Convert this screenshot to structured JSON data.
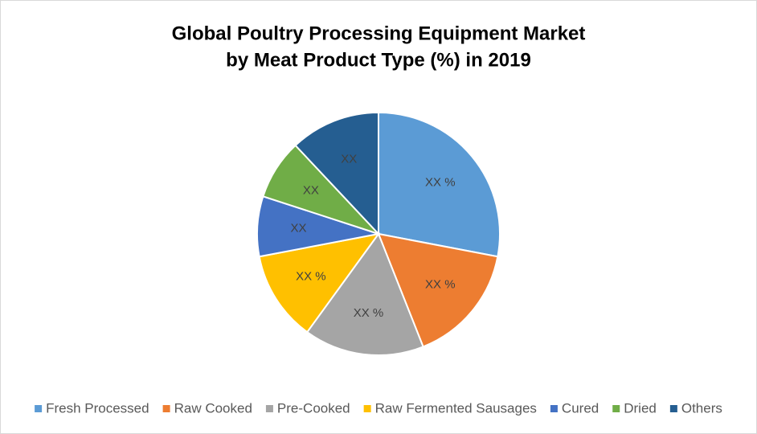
{
  "chart_data": {
    "type": "pie",
    "title": [
      "Global Poultry Processing Equipment Market",
      "by Meat Product Type (%) in 2019"
    ],
    "categories": [
      "Fresh Processed",
      "Raw Cooked",
      "Pre-Cooked",
      "Raw Fermented Sausages",
      "Cured",
      "Dried",
      "Others"
    ],
    "values": [
      28,
      16,
      16,
      12,
      8,
      8,
      12
    ],
    "value_labels": [
      "XX %",
      "XX %",
      "XX %",
      "XX %",
      "XX",
      "XX",
      "XX"
    ],
    "colors": [
      "#5b9bd5",
      "#ed7d31",
      "#a5a5a5",
      "#ffc000",
      "#4472c4",
      "#70ad47",
      "#255e91"
    ],
    "legend": "bottom"
  }
}
